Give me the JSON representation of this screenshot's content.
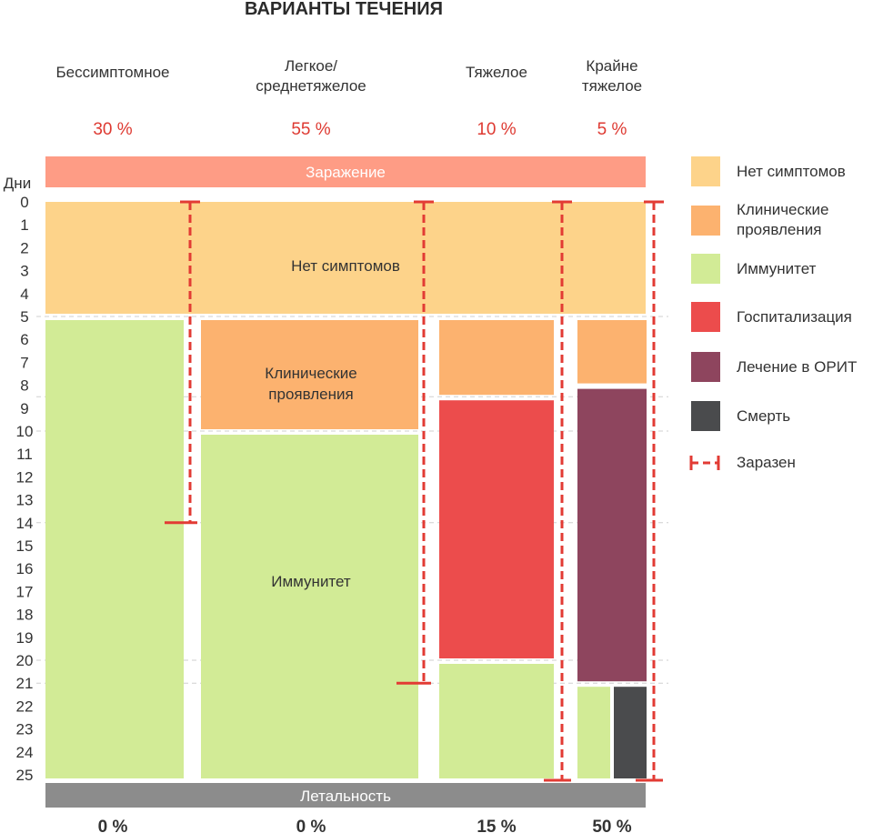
{
  "chart_data": {
    "type": "bar",
    "title": "ВАРИАНТЫ ТЕЧЕНИЯ",
    "ylabel": "Дни",
    "ylim": [
      0,
      25
    ],
    "days": [
      "0",
      "1",
      "2",
      "3",
      "4",
      "5",
      "6",
      "7",
      "8",
      "9",
      "10",
      "11",
      "12",
      "13",
      "14",
      "15",
      "16",
      "17",
      "18",
      "19",
      "20",
      "21",
      "22",
      "23",
      "24",
      "25"
    ],
    "top_bar_label": "Заражение",
    "bottom_bar_label": "Летальность",
    "columns": [
      {
        "name": "Бессимптомное",
        "percent": "30 %",
        "lethality": "0 %",
        "segments": [
          {
            "state": "immunity",
            "start": 5,
            "end": 25
          }
        ],
        "contagious": [
          0,
          14
        ]
      },
      {
        "name": "Легкое/\nсреднетяжелое",
        "percent": "55 %",
        "lethality": "0 %",
        "segments": [
          {
            "state": "clinical",
            "start": 5,
            "end": 10
          },
          {
            "state": "immunity",
            "start": 10,
            "end": 25
          }
        ],
        "contagious": [
          0,
          21
        ]
      },
      {
        "name": "Тяжелое",
        "percent": "10 %",
        "lethality": "15 %",
        "segments": [
          {
            "state": "clinical",
            "start": 5,
            "end": 8.5
          },
          {
            "state": "hospital",
            "start": 8.5,
            "end": 20
          },
          {
            "state": "immunity",
            "start": 20,
            "end": 25
          }
        ],
        "contagious": [
          0,
          25
        ]
      },
      {
        "name": "Крайне\nтяжелое",
        "percent": "5 %",
        "lethality": "50 %",
        "segments": [
          {
            "state": "clinical",
            "start": 5,
            "end": 8
          },
          {
            "state": "icu",
            "start": 8,
            "end": 21
          },
          {
            "state": "immunity_death_split",
            "start": 21,
            "end": 25
          }
        ],
        "contagious": [
          0,
          25
        ]
      }
    ],
    "shared_segment": {
      "state": "no_symptoms",
      "start": 0,
      "end": 5,
      "label": "Нет симптомов"
    },
    "region_labels": {
      "clinical": "Клинические\nпроявления",
      "immunity": "Иммунитет"
    },
    "guides": [
      5,
      8.5,
      10,
      14,
      20,
      21
    ],
    "legend": [
      {
        "key": "no_symptoms",
        "label": "Нет симптомов",
        "color": "#FDD38A"
      },
      {
        "key": "clinical",
        "label": "Клинические\nпроявления",
        "color": "#FCB26F"
      },
      {
        "key": "immunity",
        "label": "Иммунитет",
        "color": "#D2EB96"
      },
      {
        "key": "hospital",
        "label": "Госпитализация",
        "color": "#EC4C4C"
      },
      {
        "key": "icu",
        "label": "Лечение в ОРИТ",
        "color": "#8E455E"
      },
      {
        "key": "death",
        "label": "Смерть",
        "color": "#4A4B4D"
      },
      {
        "key": "contagious",
        "label": "Заразен",
        "color": "#E23B34"
      }
    ],
    "colors": {
      "no_symptoms": "#FDD38A",
      "clinical": "#FCB26F",
      "immunity": "#D2EB96",
      "hospital": "#EC4C4C",
      "icu": "#8E455E",
      "death": "#4A4B4D",
      "contagious": "#E23B34",
      "infection_bar": "#FE9C85",
      "lethality_bar": "#8C8C8C",
      "percent_text": "#DE3A32"
    },
    "legend_placement": "right"
  }
}
